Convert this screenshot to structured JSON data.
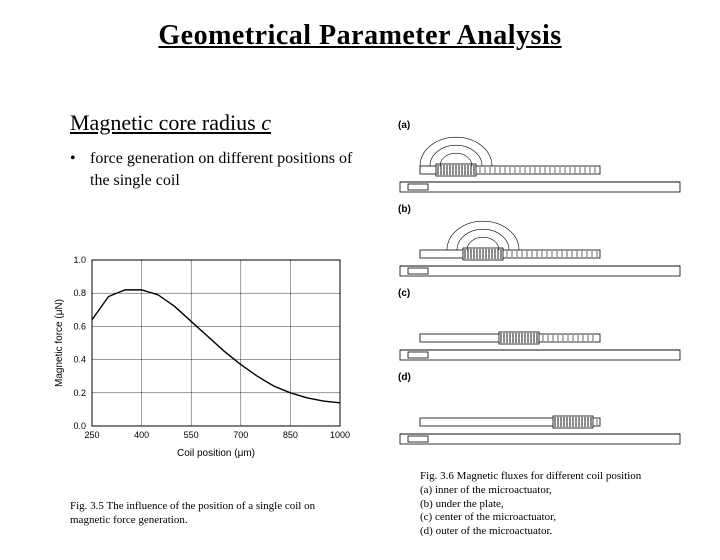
{
  "title": "Geometrical Parameter Analysis",
  "section_heading_prefix": "Magnetic core radius ",
  "section_heading_var": "c",
  "bullet": "force generation on different positions of the single coil",
  "chart": {
    "type": "line",
    "xlabel": "Coil position (μm)",
    "ylabel": "Magnetic force (μN)",
    "xlim": [
      250,
      1000
    ],
    "ylim": [
      0,
      1.0
    ],
    "xticks": [
      250,
      400,
      550,
      700,
      850,
      1000
    ],
    "yticks": [
      0,
      0.2,
      0.4,
      0.6,
      0.8,
      1.0
    ],
    "line_color": "#000000",
    "grid_color": "#000000",
    "background_color": "#ffffff",
    "data": [
      {
        "x": 250,
        "y": 0.64
      },
      {
        "x": 300,
        "y": 0.78
      },
      {
        "x": 350,
        "y": 0.82
      },
      {
        "x": 400,
        "y": 0.82
      },
      {
        "x": 450,
        "y": 0.79
      },
      {
        "x": 500,
        "y": 0.72
      },
      {
        "x": 550,
        "y": 0.63
      },
      {
        "x": 600,
        "y": 0.54
      },
      {
        "x": 650,
        "y": 0.45
      },
      {
        "x": 700,
        "y": 0.37
      },
      {
        "x": 750,
        "y": 0.3
      },
      {
        "x": 800,
        "y": 0.24
      },
      {
        "x": 850,
        "y": 0.2
      },
      {
        "x": 900,
        "y": 0.17
      },
      {
        "x": 950,
        "y": 0.15
      },
      {
        "x": 1000,
        "y": 0.14
      }
    ]
  },
  "caption_left": "Fig. 3.5 The influence of the position of a single coil on magnetic force generation.",
  "caption_right_lines": [
    "Fig. 3.6 Magnetic fluxes for different coil position",
    "(a) inner of the microactuator,",
    "(b) under the plate,",
    "(c) center of the microactuator,",
    "(d) outer of the microactuator."
  ],
  "subfigs": [
    {
      "label": "(a)",
      "coil_offset": 0.2,
      "show_flux_arcs": true
    },
    {
      "label": "(b)",
      "coil_offset": 0.35,
      "show_flux_arcs": true
    },
    {
      "label": "(c)",
      "coil_offset": 0.55,
      "show_flux_arcs": false
    },
    {
      "label": "(d)",
      "coil_offset": 0.85,
      "show_flux_arcs": false
    }
  ]
}
